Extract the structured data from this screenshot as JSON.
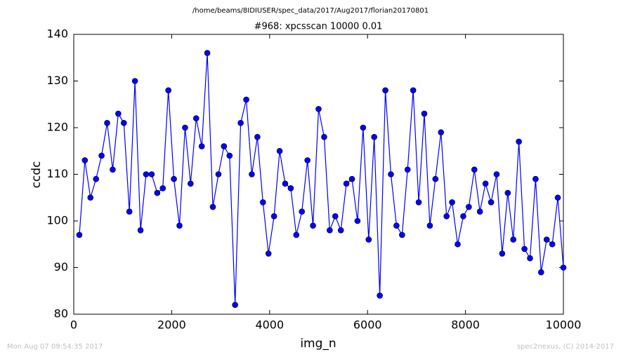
{
  "chart_data": {
    "type": "line",
    "suptitle": "/home/beams/8IDIUSER/spec_data/2017/Aug2017/florian20170801",
    "title": "#968: xpcsscan 10000 0.01",
    "xlabel": "img_n",
    "ylabel": "ccdc",
    "footer_left": "Mon Aug 07 09:54:35 2017",
    "footer_right": "spec2nexus, (C) 2014-2017",
    "color": "#0000ff",
    "grid": false,
    "xlim": [
      0,
      10000
    ],
    "xticks": [
      0,
      2000,
      4000,
      6000,
      8000,
      10000
    ],
    "ylim": [
      80,
      140
    ],
    "yticks": [
      80,
      90,
      100,
      110,
      120,
      130,
      140
    ],
    "x": [
      114,
      227,
      341,
      455,
      568,
      682,
      795,
      909,
      1023,
      1136,
      1250,
      1364,
      1477,
      1591,
      1705,
      1818,
      1932,
      2045,
      2159,
      2273,
      2386,
      2500,
      2614,
      2727,
      2841,
      2955,
      3068,
      3182,
      3295,
      3409,
      3523,
      3636,
      3750,
      3864,
      3977,
      4091,
      4205,
      4318,
      4432,
      4545,
      4659,
      4773,
      4886,
      5000,
      5114,
      5227,
      5341,
      5455,
      5568,
      5682,
      5795,
      5909,
      6023,
      6136,
      6250,
      6364,
      6477,
      6591,
      6705,
      6818,
      6932,
      7045,
      7159,
      7273,
      7386,
      7500,
      7614,
      7727,
      7841,
      7955,
      8068,
      8182,
      8295,
      8409,
      8523,
      8636,
      8750,
      8864,
      8977,
      9091,
      9205,
      9318,
      9432,
      9545,
      9659,
      9773,
      9886,
      10000
    ],
    "values": [
      97,
      113,
      105,
      109,
      114,
      121,
      111,
      123,
      121,
      102,
      130,
      98,
      110,
      110,
      106,
      107,
      128,
      109,
      99,
      120,
      108,
      122,
      116,
      136,
      103,
      110,
      116,
      114,
      82,
      121,
      126,
      110,
      118,
      104,
      93,
      101,
      115,
      108,
      107,
      97,
      102,
      113,
      99,
      124,
      118,
      98,
      101,
      98,
      108,
      109,
      100,
      120,
      96,
      118,
      84,
      128,
      110,
      99,
      97,
      111,
      128,
      104,
      123,
      99,
      109,
      119,
      101,
      104,
      95,
      101,
      103,
      111,
      102,
      108,
      104,
      110,
      93,
      106,
      96,
      117,
      94,
      92,
      109,
      89,
      96,
      95,
      105,
      90
    ]
  }
}
